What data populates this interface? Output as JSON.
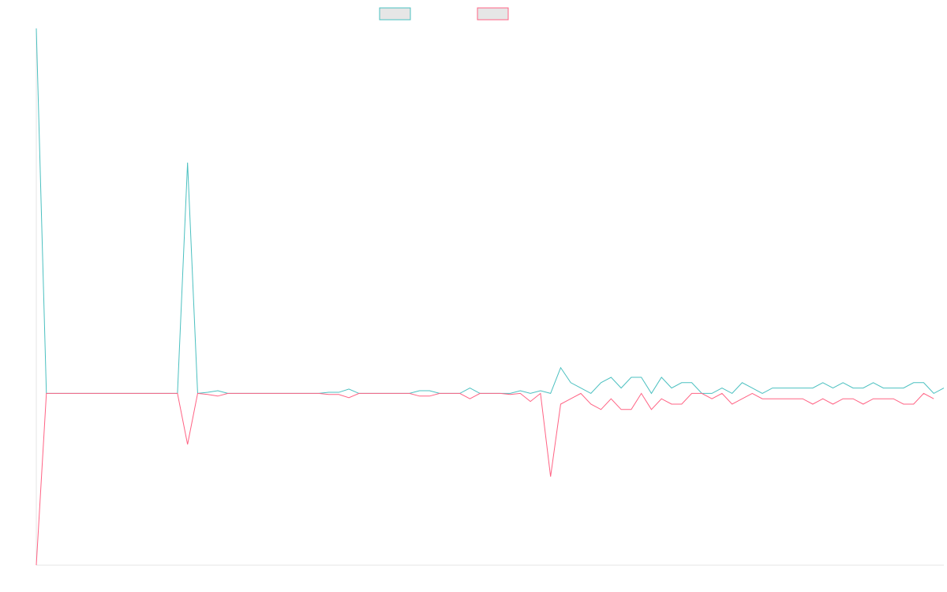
{
  "chart_data": {
    "type": "line",
    "title": "",
    "xlabel": "",
    "ylabel": "",
    "grid": false,
    "legend": "top-center",
    "ylim": [
      -32,
      68
    ],
    "series": [
      {
        "name": "",
        "color": "#4bc0c0",
        "fill": "#e6e6e6",
        "values": [
          68,
          0,
          0,
          0,
          0,
          0,
          0,
          0,
          0,
          0,
          0,
          0,
          0,
          0,
          0,
          43,
          0,
          0.2,
          0.5,
          0,
          0,
          0,
          0,
          0,
          0,
          0,
          0,
          0,
          0,
          0.2,
          0.2,
          0.8,
          0,
          0,
          0,
          0,
          0,
          0,
          0.5,
          0.5,
          0,
          0,
          0,
          1,
          0,
          0,
          0,
          0,
          0.5,
          0,
          0.5,
          0,
          4.8,
          2,
          1,
          0,
          2,
          3,
          1,
          3,
          3,
          0,
          3,
          1,
          2,
          2,
          0,
          0,
          1,
          0,
          2,
          1,
          0,
          1,
          1,
          1,
          1,
          1,
          2,
          1,
          2,
          1,
          1,
          2,
          1,
          1,
          1,
          2,
          2,
          0,
          1
        ]
      },
      {
        "name": "",
        "color": "#ff6384",
        "fill": "#e6e6e6",
        "values": [
          -32,
          0,
          0,
          0,
          0,
          0,
          0,
          0,
          0,
          0,
          0,
          0,
          0,
          0,
          0,
          -9.5,
          0,
          -0.2,
          -0.5,
          0,
          0,
          0,
          0,
          0,
          0,
          0,
          0,
          0,
          0,
          -0.2,
          -0.2,
          -0.8,
          0,
          0,
          0,
          0,
          0,
          0,
          -0.5,
          -0.5,
          0,
          0,
          0,
          -1,
          0,
          0,
          0,
          -0.2,
          0,
          -1.5,
          0,
          -15.5,
          -2,
          -1,
          0,
          -2,
          -3,
          -1,
          -3,
          -3,
          0,
          -3,
          -1,
          -2,
          -2,
          0,
          0,
          -1,
          0,
          -2,
          -1,
          0,
          -1,
          -1,
          -1,
          -1,
          -1,
          -2,
          -1,
          -2,
          -1,
          -1,
          -2,
          -1,
          -1,
          -1,
          -2,
          -2,
          0,
          -1
        ]
      }
    ]
  }
}
